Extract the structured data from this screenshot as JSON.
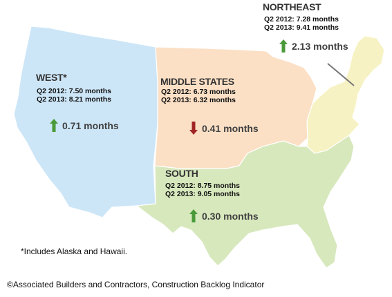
{
  "colors": {
    "west_fill": "#cde6f7",
    "middle_fill": "#fbe0c6",
    "northeast_fill": "#f7f2c3",
    "south_fill": "#d7e8bd",
    "up_arrow": "#4a9a3a",
    "down_arrow": "#a12424"
  },
  "regions": {
    "west": {
      "name": "WEST*",
      "q2_2012": "Q2 2012: 7.50 months",
      "q2_2013": "Q2 2013: 8.21 months",
      "change": "0.71 months",
      "direction": "up"
    },
    "middle": {
      "name": "MIDDLE STATES",
      "q2_2012": "Q2 2012: 6.73 months",
      "q2_2013": "Q2 2013: 6.32 months",
      "change": "0.41 months",
      "direction": "down"
    },
    "northeast": {
      "name": "NORTHEAST",
      "q2_2012": "Q2 2012: 7.28 months",
      "q2_2013": "Q2 2013: 9.41 months",
      "change": "2.13 months",
      "direction": "up"
    },
    "south": {
      "name": "SOUTH",
      "q2_2012": "Q2 2012: 8.75 months",
      "q2_2013": "Q2 2013: 9.05 months",
      "change": "0.30 months",
      "direction": "up"
    }
  },
  "footnote": "*Includes Alaska and Hawaii.",
  "credit": "©Associated Builders and Contractors, Construction Backlog Indicator"
}
